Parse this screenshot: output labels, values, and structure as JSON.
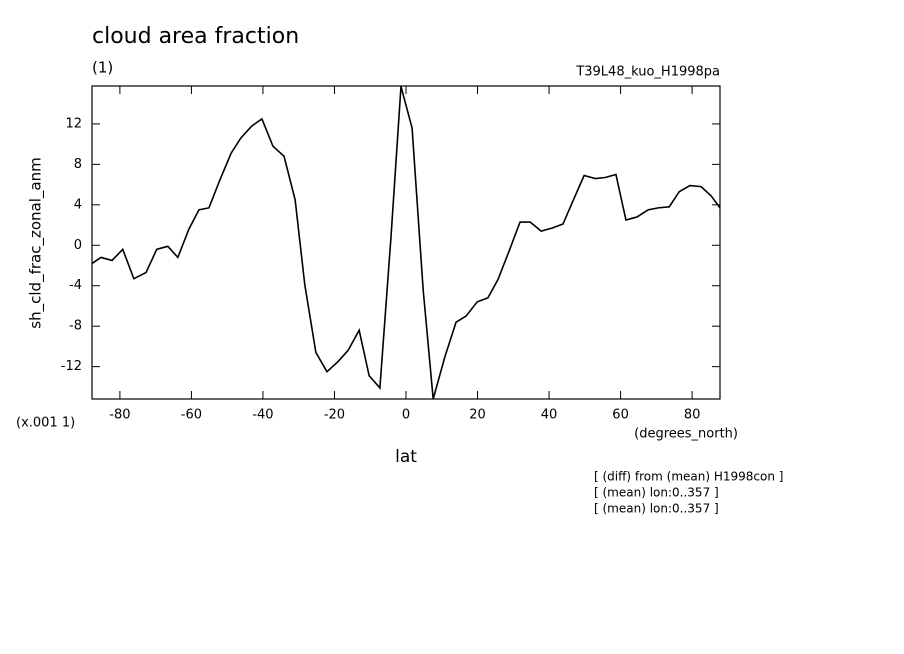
{
  "chart_data": {
    "type": "line",
    "title": "cloud area fraction",
    "subtitle": "(1)",
    "run_label": "T39L48_kuo_H1998pa",
    "y_label": "sh_cld_frac_zonal_anm",
    "y_scale_label": "(x.001 1)",
    "x_unit_label": "(degrees_north)",
    "x_label": "lat",
    "notes": [
      "[ (diff) from (mean) H1998con ]",
      "[ (mean) lon:0..357 ]",
      "[ (mean) lon:0..357 ]"
    ],
    "xlim": [
      -87.8,
      87.8
    ],
    "ylim": [
      -15.2,
      15.75
    ],
    "xticks": [
      -80,
      -60,
      -40,
      -20,
      0,
      20,
      40,
      60,
      80
    ],
    "yticks": [
      -12,
      -8,
      -4,
      0,
      4,
      8,
      12
    ],
    "color": "#000000",
    "x": [
      -87.8,
      -85.3,
      -82.2,
      -79.2,
      -76.1,
      -72.7,
      -69.7,
      -66.6,
      -63.8,
      -60.7,
      -57.9,
      -55.1,
      -52.0,
      -48.9,
      -46.2,
      -43.1,
      -40.3,
      -37.2,
      -34.1,
      -31.0,
      -28.3,
      -25.2,
      -22.1,
      -19.0,
      -16.2,
      -13.1,
      -10.3,
      -7.3,
      -4.2,
      -1.4,
      1.7,
      4.8,
      7.6,
      10.9,
      14.0,
      16.8,
      19.9,
      22.9,
      25.7,
      28.8,
      31.9,
      34.7,
      37.8,
      40.8,
      43.9,
      46.7,
      49.8,
      52.9,
      55.7,
      58.7,
      61.5,
      64.6,
      67.7,
      70.5,
      73.6,
      76.4,
      79.4,
      82.5,
      85.3,
      87.8
    ],
    "values": [
      -1.8,
      -1.2,
      -1.5,
      -0.4,
      -3.3,
      -2.7,
      -0.4,
      -0.1,
      -1.2,
      1.6,
      3.5,
      3.7,
      6.5,
      9.1,
      10.6,
      11.8,
      12.5,
      9.8,
      8.8,
      4.5,
      -3.9,
      -10.6,
      -12.5,
      -11.5,
      -10.4,
      -8.4,
      -12.9,
      -14.1,
      0.8,
      15.7,
      11.6,
      -4.4,
      -15.2,
      -11.0,
      -7.6,
      -7.0,
      -5.6,
      -5.2,
      -3.4,
      -0.6,
      2.3,
      2.3,
      1.4,
      1.7,
      2.1,
      4.4,
      6.9,
      6.6,
      6.7,
      7.0,
      2.5,
      2.8,
      3.5,
      3.7,
      3.8,
      5.3,
      5.9,
      5.8,
      4.9,
      3.7
    ]
  }
}
